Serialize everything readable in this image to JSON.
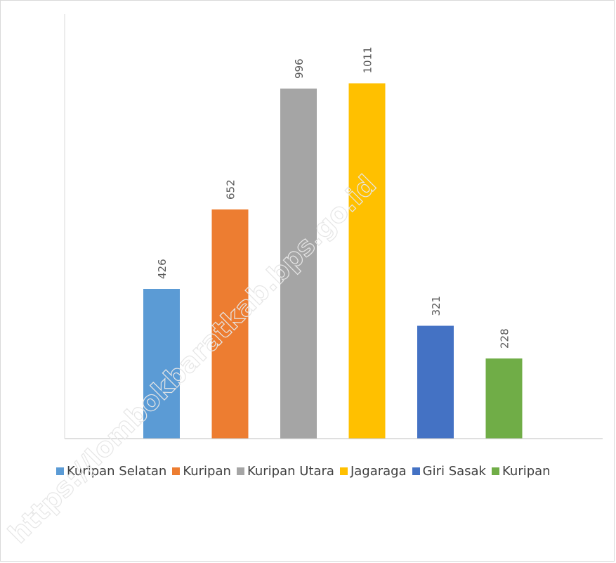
{
  "chart_data": {
    "type": "bar",
    "categories": [
      "Kuripan Selatan",
      "Kuripan",
      "Kuripan Utara",
      "Jagaraga",
      "Giri Sasak",
      "Kuripan"
    ],
    "values": [
      426,
      652,
      996,
      1011,
      321,
      228
    ],
    "colors": [
      "#5b9bd5",
      "#ed7d31",
      "#a5a5a5",
      "#ffc000",
      "#4472c4",
      "#70ad47"
    ],
    "value_labels": [
      "426",
      "652",
      "996",
      "1011",
      "321",
      "228"
    ],
    "legend_position": "bottom",
    "grid": false,
    "ylim": [
      0,
      1100
    ]
  },
  "watermark": "https://lombokbaratkab.bps.go.id"
}
